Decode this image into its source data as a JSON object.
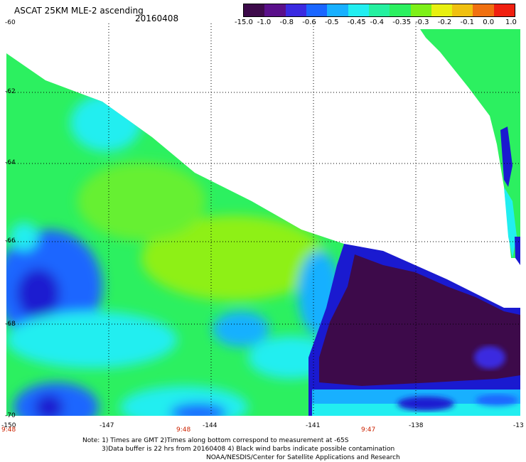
{
  "header": {
    "title": "ASCAT 25KM MLE-2 ascending",
    "date": "20160408"
  },
  "colorbar": {
    "labels": [
      "-15.0",
      "-1.0",
      "-0.8",
      "-0.6",
      "-0.5",
      "-0.45",
      "-0.4",
      "-0.35",
      "-0.3",
      "-0.2",
      "-0.1",
      "0.0",
      "1.0"
    ],
    "colors": [
      "#3d0a4a",
      "#5a0f8a",
      "#3a2ae0",
      "#1a66ff",
      "#18b0ff",
      "#22eef0",
      "#25f0a0",
      "#2cf060",
      "#7ef018",
      "#e8f010",
      "#f0c010",
      "#f07010",
      "#f02010"
    ]
  },
  "axes": {
    "lat_labels": [
      "-60",
      "-62",
      "-64",
      "-66",
      "-68",
      "-70"
    ],
    "lon_labels": [
      "-150",
      "-147",
      "-144",
      "-141",
      "-138",
      "-13"
    ]
  },
  "times": [
    "9:48",
    "9:48",
    "9:47"
  ],
  "notes": [
    "Note: 1) Times are GMT 2)Times along bottom correspond to measurement at -65S",
    "3)Data buffer is 22 hrs from 20160408 4) Black wind barbs indicate possible contamination",
    "NOAA/NESDIS/Center for Satellite Applications and Research"
  ],
  "colors": {
    "green": "#2cf060",
    "lime": "#8ef018",
    "cyan": "#22eef0",
    "blue": "#1a66ff",
    "deep_blue": "#1a1ad0",
    "purple": "#3d0a4a"
  }
}
